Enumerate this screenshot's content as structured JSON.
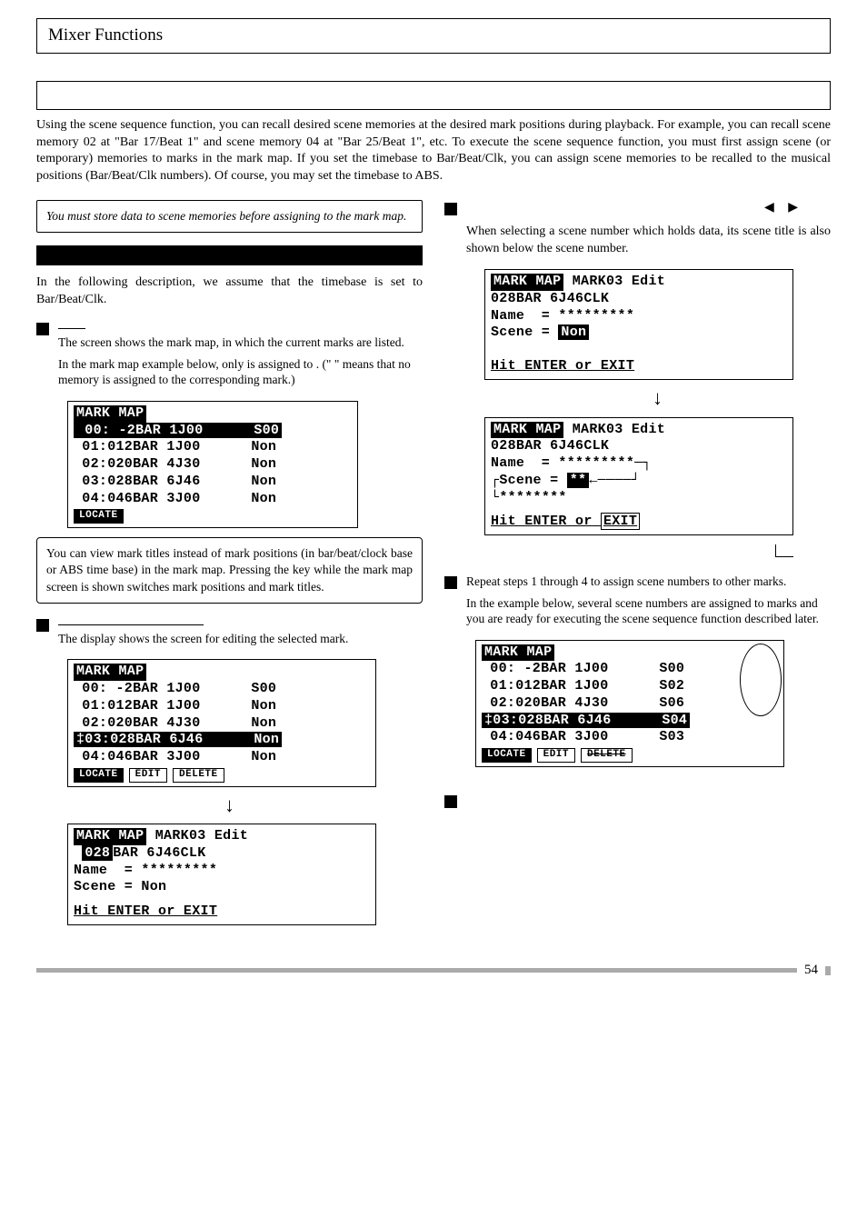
{
  "header": {
    "title": "Mixer Functions"
  },
  "intro": "Using the scene sequence function, you can recall desired scene memories at the desired mark positions during playback. For example, you can recall scene memory 02 at \"Bar 17/Beat 1\" and scene memory 04 at \"Bar 25/Beat 1\", etc.  To execute the scene sequence function, you must first assign scene (or temporary) memories to marks in the mark map.  If you set the timebase to Bar/Beat/Clk, you can assign scene memories to be recalled to the musical positions (Bar/Beat/Clk numbers). Of course, you may set the timebase to ABS.",
  "note1": "You must store data to scene memories before assigning to the mark map.",
  "assumption": "In the following description, we assume that the timebase is set to Bar/Beat/Clk.",
  "step1": {
    "line1": "The screen shows the mark map, in which the current marks are listed.",
    "line2": "In the mark map example below, only",
    "line3": "is assigned to",
    "line4": ". (\"",
    "line5": "\" means that no memory is assigned to the corresponding mark.)"
  },
  "lcd1": {
    "title": "MARK MAP",
    "rows": [
      {
        "idx": "00:",
        "pos": " -2BAR",
        "clk": "1J00",
        "scn": "S00",
        "hl": true
      },
      {
        "idx": "01:",
        "pos": "012BAR",
        "clk": "1J00",
        "scn": "Non"
      },
      {
        "idx": "02:",
        "pos": "020BAR",
        "clk": "4J30",
        "scn": "Non"
      },
      {
        "idx": "03:",
        "pos": "028BAR",
        "clk": "6J46",
        "scn": "Non"
      },
      {
        "idx": "04:",
        "pos": "046BAR",
        "clk": "3J00",
        "scn": "Non"
      }
    ],
    "btn": "LOCATE"
  },
  "infobox1": "You can view mark titles instead of mark positions (in bar/beat/clock base or ABS time base) in the mark map. Pressing the                          key while the mark map screen is shown switches mark positions and mark titles.",
  "step2": {
    "text": "The display shows the screen for editing the selected mark."
  },
  "lcd2": {
    "title": "MARK MAP",
    "rows": [
      {
        "idx": "00:",
        "pos": " -2BAR",
        "clk": "1J00",
        "scn": "S00"
      },
      {
        "idx": "01:",
        "pos": "012BAR",
        "clk": "1J00",
        "scn": "Non"
      },
      {
        "idx": "02:",
        "pos": "020BAR",
        "clk": "4J30",
        "scn": "Non"
      },
      {
        "idx": "03:",
        "pos": "028BAR",
        "clk": "6J46",
        "scn": "Non",
        "hl": true,
        "prefix": "‡"
      },
      {
        "idx": "04:",
        "pos": "046BAR",
        "clk": "3J00",
        "scn": "Non"
      }
    ],
    "btns": [
      "LOCATE",
      "EDIT",
      "DELETE"
    ]
  },
  "lcd2b": {
    "title": "MARK MAP",
    "subtitle": "MARK03 Edit",
    "pos": "028BAR 6J46CLK",
    "name_label": "Name  = *********",
    "scene_label": "Scene = Non",
    "prompt": "Hit ENTER or EXIT"
  },
  "right": {
    "arrows": "◀ ▶",
    "seltext": "When selecting a scene number which holds data, its scene title is also shown below the scene number."
  },
  "lcd3a": {
    "title": "MARK MAP",
    "subtitle": "MARK03 Edit",
    "pos": "028BAR 6J46CLK",
    "name_label": "Name  = *********",
    "scene_label": "Scene = ",
    "scene_val": "Non",
    "prompt": "Hit ENTER or EXIT"
  },
  "lcd3b": {
    "title": "MARK MAP",
    "subtitle": "MARK03 Edit",
    "pos": "028BAR 6J46CLK",
    "name_label": "Name  = *********",
    "scene_label": "Scene = ",
    "scene_val": "**",
    "extra": "********",
    "prompt": "Hit ENTER or",
    "prompt2": "EXIT"
  },
  "step_repeat": {
    "text": "Repeat steps 1 through 4 to assign scene numbers to other marks.",
    "text2": "In the example below, several scene numbers are assigned to marks and you are ready for executing the scene sequence function described later."
  },
  "lcd4": {
    "title": "MARK MAP",
    "rows": [
      {
        "idx": "00:",
        "pos": " -2BAR",
        "clk": "1J00",
        "scn": "S00"
      },
      {
        "idx": "01:",
        "pos": "012BAR",
        "clk": "1J00",
        "scn": "S02"
      },
      {
        "idx": "02:",
        "pos": "020BAR",
        "clk": "4J30",
        "scn": "S06"
      },
      {
        "idx": "03:",
        "pos": "028BAR",
        "clk": "6J46",
        "scn": "S04",
        "hl": true,
        "prefix": "‡"
      },
      {
        "idx": "04:",
        "pos": "046BAR",
        "clk": "3J00",
        "scn": "S03"
      }
    ],
    "btns": [
      "LOCATE",
      "EDIT",
      "DELETE"
    ]
  },
  "page_number": "54"
}
